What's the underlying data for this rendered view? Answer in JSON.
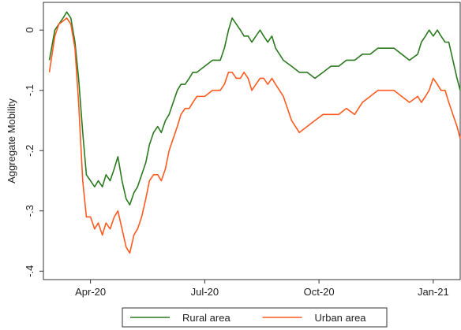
{
  "chart_data": {
    "type": "line",
    "ylabel": "Aggregate Mobility",
    "x": [
      2020.16,
      2020.172,
      2020.181,
      2020.19,
      2020.198,
      2020.207,
      2020.216,
      2020.224,
      2020.233,
      2020.241,
      2020.25,
      2020.259,
      2020.267,
      2020.276,
      2020.284,
      2020.293,
      2020.302,
      2020.31,
      2020.319,
      2020.328,
      2020.336,
      2020.345,
      2020.353,
      2020.362,
      2020.371,
      2020.379,
      2020.388,
      2020.397,
      2020.405,
      2020.414,
      2020.422,
      2020.431,
      2020.44,
      2020.448,
      2020.457,
      2020.466,
      2020.474,
      2020.483,
      2020.5,
      2020.517,
      2020.534,
      2020.543,
      2020.552,
      2020.56,
      2020.569,
      2020.578,
      2020.586,
      2020.595,
      2020.603,
      2020.612,
      2020.621,
      2020.629,
      2020.638,
      2020.647,
      2020.655,
      2020.672,
      2020.69,
      2020.707,
      2020.724,
      2020.741,
      2020.759,
      2020.776,
      2020.793,
      2020.81,
      2020.828,
      2020.845,
      2020.862,
      2020.879,
      2020.897,
      2020.914,
      2020.931,
      2020.948,
      2020.966,
      2020.974,
      2020.983,
      2020.991,
      2021.0,
      2021.009,
      2021.017,
      2021.026,
      2021.034,
      2021.043,
      2021.052,
      2021.059
    ],
    "series": [
      {
        "name": "Rural area",
        "color": "#2a7a1e",
        "values": [
          -0.05,
          0.0,
          0.01,
          0.02,
          0.03,
          0.02,
          -0.02,
          -0.08,
          -0.17,
          -0.24,
          -0.25,
          -0.26,
          -0.25,
          -0.26,
          -0.24,
          -0.25,
          -0.23,
          -0.21,
          -0.25,
          -0.28,
          -0.29,
          -0.27,
          -0.26,
          -0.24,
          -0.22,
          -0.19,
          -0.17,
          -0.16,
          -0.17,
          -0.15,
          -0.14,
          -0.12,
          -0.1,
          -0.09,
          -0.09,
          -0.08,
          -0.07,
          -0.07,
          -0.06,
          -0.05,
          -0.05,
          -0.03,
          0.0,
          0.02,
          0.01,
          0.0,
          -0.01,
          -0.01,
          -0.02,
          -0.01,
          0.0,
          -0.01,
          -0.02,
          -0.01,
          -0.03,
          -0.05,
          -0.06,
          -0.07,
          -0.07,
          -0.08,
          -0.07,
          -0.06,
          -0.06,
          -0.05,
          -0.05,
          -0.04,
          -0.04,
          -0.03,
          -0.03,
          -0.03,
          -0.04,
          -0.05,
          -0.04,
          -0.02,
          -0.01,
          0.0,
          -0.01,
          0.0,
          -0.01,
          -0.02,
          -0.02,
          -0.05,
          -0.08,
          -0.1
        ]
      },
      {
        "name": "Urban area",
        "color": "#ff5a1f",
        "values": [
          -0.07,
          -0.01,
          0.01,
          0.015,
          0.02,
          0.01,
          -0.03,
          -0.12,
          -0.25,
          -0.31,
          -0.31,
          -0.33,
          -0.32,
          -0.34,
          -0.32,
          -0.33,
          -0.31,
          -0.3,
          -0.33,
          -0.36,
          -0.37,
          -0.34,
          -0.33,
          -0.31,
          -0.28,
          -0.25,
          -0.24,
          -0.24,
          -0.25,
          -0.23,
          -0.2,
          -0.18,
          -0.16,
          -0.14,
          -0.13,
          -0.13,
          -0.12,
          -0.11,
          -0.11,
          -0.1,
          -0.1,
          -0.09,
          -0.07,
          -0.07,
          -0.08,
          -0.08,
          -0.07,
          -0.08,
          -0.1,
          -0.09,
          -0.08,
          -0.08,
          -0.09,
          -0.08,
          -0.09,
          -0.11,
          -0.15,
          -0.17,
          -0.16,
          -0.15,
          -0.14,
          -0.14,
          -0.14,
          -0.13,
          -0.14,
          -0.12,
          -0.11,
          -0.1,
          -0.1,
          -0.1,
          -0.11,
          -0.12,
          -0.11,
          -0.12,
          -0.11,
          -0.1,
          -0.08,
          -0.09,
          -0.1,
          -0.1,
          -0.12,
          -0.14,
          -0.16,
          -0.18
        ]
      }
    ],
    "xlim": [
      2020.147,
      2021.059
    ],
    "xticks": [
      {
        "value": 2020.25,
        "label": "Apr-20"
      },
      {
        "value": 2020.5,
        "label": "Jul-20"
      },
      {
        "value": 2020.75,
        "label": "Oct-20"
      },
      {
        "value": 2021.0,
        "label": "Jan-21"
      }
    ],
    "ylim": [
      -0.414,
      0.046
    ],
    "yticks": [
      0,
      {
        "value": -0.1,
        "label": "-.1"
      },
      {
        "value": -0.2,
        "label": "-.2"
      },
      {
        "value": -0.3,
        "label": "-.3"
      },
      {
        "value": -0.4,
        "label": "-.4"
      }
    ],
    "grid": false,
    "legend": "bottom"
  }
}
